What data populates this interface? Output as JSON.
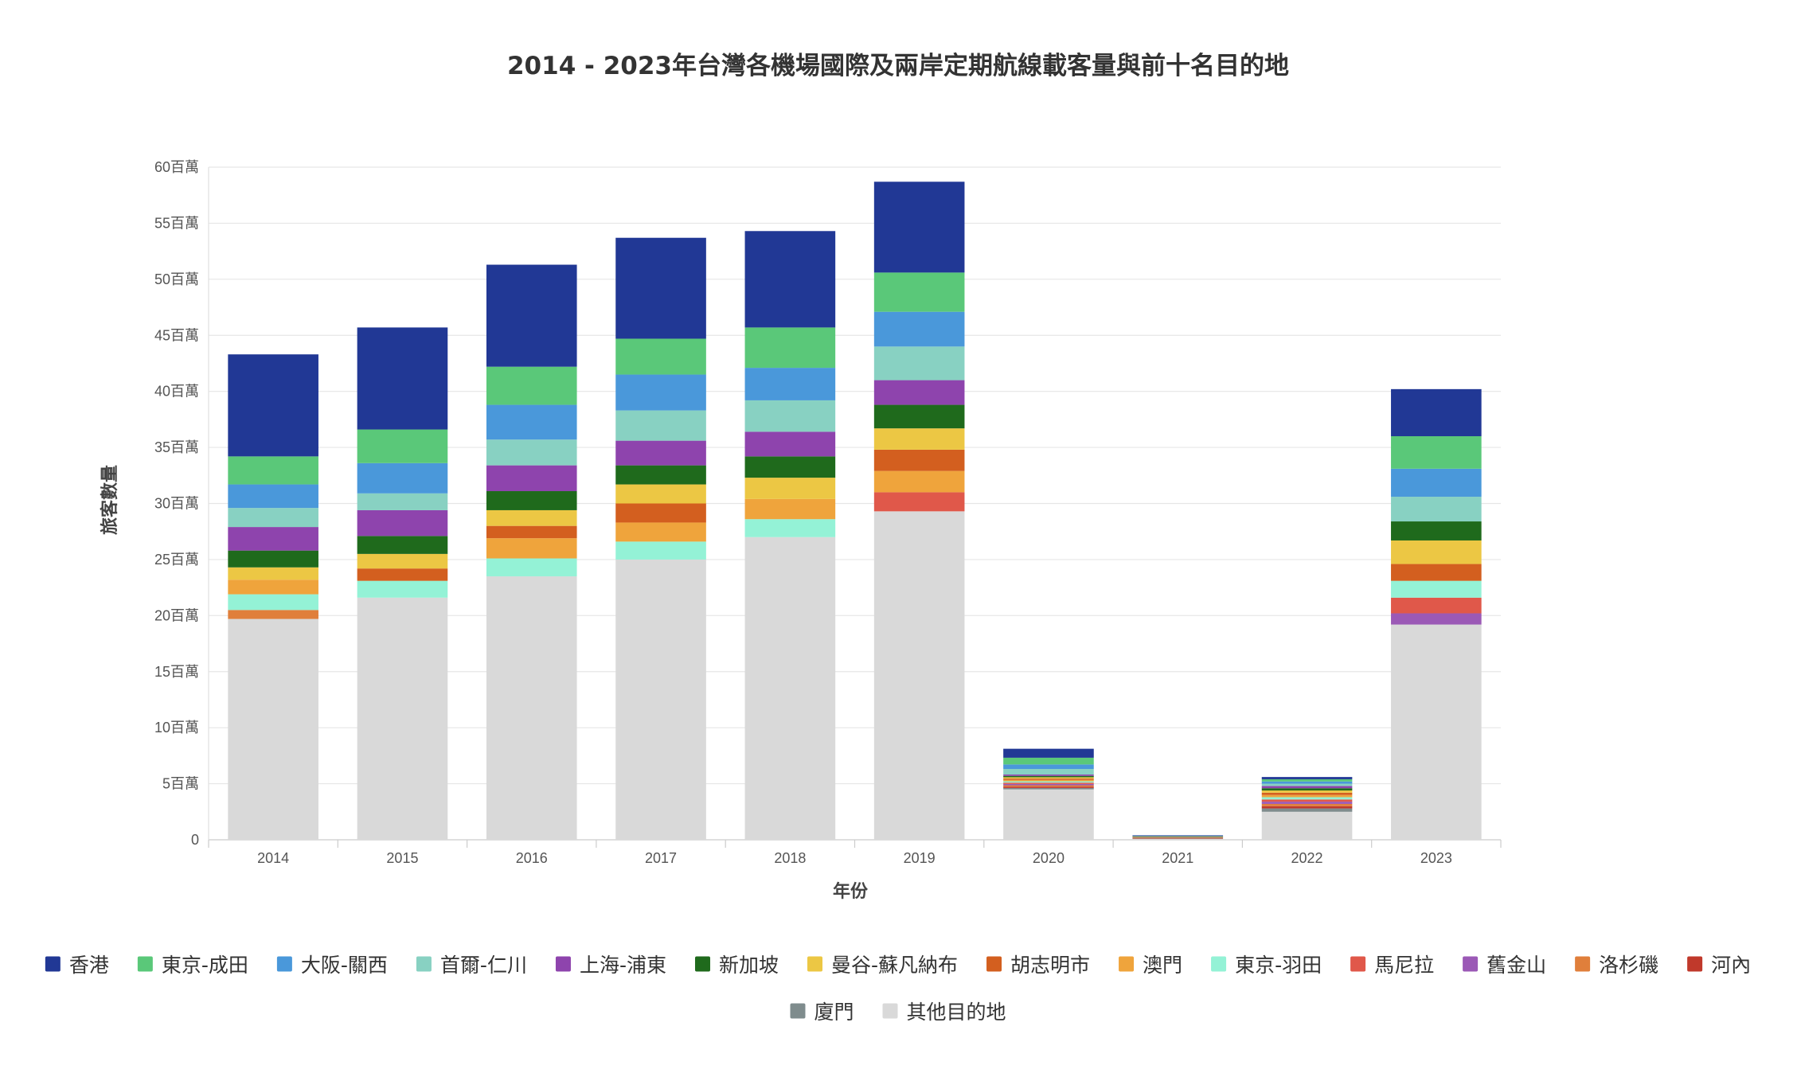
{
  "chart_data": {
    "type": "bar",
    "stacked": true,
    "title": "2014 - 2023年台灣各機場國際及兩岸定期航線載客量與前十名目的地",
    "xlabel": "年份",
    "ylabel": "旅客數量",
    "ylim": [
      0,
      60
    ],
    "y_unit": "百萬",
    "y_ticks": [
      "0",
      "5百萬",
      "10百萬",
      "15百萬",
      "20百萬",
      "25百萬",
      "30百萬",
      "35百萬",
      "40百萬",
      "45百萬",
      "50百萬",
      "55百萬",
      "60百萬"
    ],
    "grid": true,
    "legend_position": "bottom-center",
    "categories": [
      "2014",
      "2015",
      "2016",
      "2017",
      "2018",
      "2019",
      "2020",
      "2021",
      "2022",
      "2023"
    ],
    "series": [
      {
        "name": "其他目的地",
        "color": "#d9d9d9",
        "values": [
          19.7,
          21.6,
          23.5,
          25.0,
          27.0,
          29.3,
          4.5,
          0.1,
          2.5,
          19.2
        ]
      },
      {
        "name": "廈門",
        "color": "#7f8c8d",
        "values": [
          0,
          0,
          0,
          0,
          0,
          0,
          0.12,
          0.02,
          0.3,
          0
        ]
      },
      {
        "name": "河內",
        "color": "#c0392b",
        "values": [
          0,
          0,
          0,
          0,
          0,
          0,
          0.12,
          0.02,
          0.2,
          0
        ]
      },
      {
        "name": "洛杉磯",
        "color": "#e07f3b",
        "values": [
          0.8,
          0,
          0,
          0,
          0,
          0,
          0.12,
          0.02,
          0.2,
          0
        ]
      },
      {
        "name": "舊金山",
        "color": "#9b59b6",
        "values": [
          0,
          0,
          0,
          0,
          0,
          0,
          0.12,
          0.02,
          0.2,
          1.0
        ]
      },
      {
        "name": "馬尼拉",
        "color": "#e0584a",
        "values": [
          0,
          0,
          0,
          0,
          0,
          1.7,
          0.12,
          0.02,
          0.2,
          1.4
        ]
      },
      {
        "name": "東京-羽田",
        "color": "#94f2d6",
        "values": [
          1.4,
          1.5,
          1.6,
          1.6,
          1.6,
          0,
          0.12,
          0.02,
          0.2,
          1.5
        ]
      },
      {
        "name": "澳門",
        "color": "#efa43c",
        "values": [
          1.3,
          0,
          1.8,
          1.7,
          1.8,
          1.9,
          0.12,
          0.02,
          0.2,
          0
        ]
      },
      {
        "name": "胡志明市",
        "color": "#d35f1f",
        "values": [
          0,
          1.1,
          1.1,
          1.7,
          0,
          1.9,
          0.12,
          0.02,
          0.2,
          1.5
        ]
      },
      {
        "name": "曼谷-蘇凡納布",
        "color": "#ecc744",
        "values": [
          1.1,
          1.3,
          1.4,
          1.7,
          1.9,
          1.9,
          0.12,
          0.02,
          0.2,
          2.1
        ]
      },
      {
        "name": "新加坡",
        "color": "#1f6a1c",
        "values": [
          1.5,
          1.6,
          1.7,
          1.7,
          1.9,
          2.1,
          0.12,
          0.02,
          0.2,
          1.7
        ]
      },
      {
        "name": "上海-浦東",
        "color": "#8e44ad",
        "values": [
          2.1,
          2.3,
          2.3,
          2.2,
          2.2,
          2.2,
          0.12,
          0.02,
          0.2,
          0
        ]
      },
      {
        "name": "首爾-仁川",
        "color": "#88d1c2",
        "values": [
          1.7,
          1.5,
          2.3,
          2.7,
          2.8,
          3.0,
          0.5,
          0.02,
          0.2,
          2.2
        ]
      },
      {
        "name": "大阪-關西",
        "color": "#4a98da",
        "values": [
          2.1,
          2.7,
          3.1,
          3.2,
          2.9,
          3.1,
          0.4,
          0.02,
          0.2,
          2.5
        ]
      },
      {
        "name": "東京-成田",
        "color": "#5ac879",
        "values": [
          2.5,
          3.0,
          3.4,
          3.2,
          3.6,
          3.5,
          0.6,
          0.02,
          0.2,
          2.9
        ]
      },
      {
        "name": "香港",
        "color": "#213895",
        "values": [
          9.1,
          9.1,
          9.1,
          9.0,
          8.6,
          8.1,
          0.8,
          0.02,
          0.2,
          4.2
        ]
      }
    ],
    "legend_order": [
      "香港",
      "東京-成田",
      "大阪-關西",
      "首爾-仁川",
      "上海-浦東",
      "新加坡",
      "曼谷-蘇凡納布",
      "胡志明市",
      "澳門",
      "東京-羽田",
      "馬尼拉",
      "舊金山",
      "洛杉磯",
      "河內",
      "廈門",
      "其他目的地"
    ]
  }
}
